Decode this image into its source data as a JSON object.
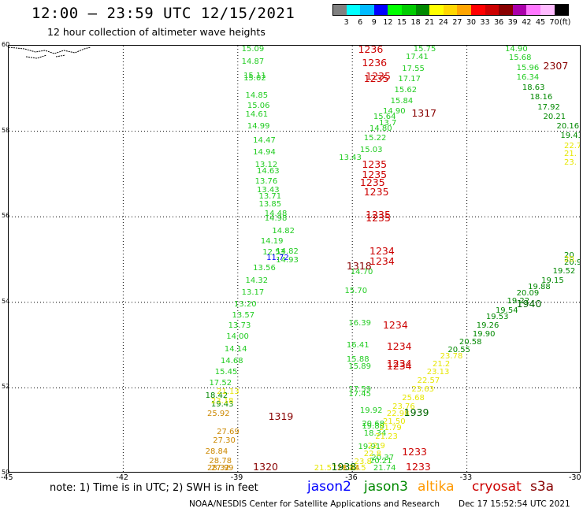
{
  "header": {
    "title": "12:00 – 23:59 UTC 12/15/2021",
    "subtitle": "12 hour collection of altimeter wave heights"
  },
  "colorbar": {
    "colors": [
      "#808080",
      "#00ffff",
      "#00bbff",
      "#0000ff",
      "#00ff00",
      "#00cc00",
      "#008800",
      "#ffff00",
      "#ffd700",
      "#ffa500",
      "#ff0000",
      "#cc0000",
      "#880000",
      "#aa00aa",
      "#ff77ff",
      "#ffbbff",
      "#000000"
    ],
    "ticks": [
      "3",
      "6",
      "9",
      "12",
      "15",
      "18",
      "21",
      "24",
      "27",
      "30",
      "33",
      "36",
      "39",
      "42",
      "45",
      "70"
    ],
    "unit": "(ft)"
  },
  "axes": {
    "lon_ticks": [
      "-45",
      "-42",
      "-39",
      "-36",
      "-33",
      "-30"
    ],
    "lat_ticks": [
      "60",
      "58",
      "56",
      "54",
      "52",
      "50"
    ]
  },
  "times": [
    {
      "t": "1236",
      "lon": -35.85,
      "lat": 59.92,
      "c": "#cc0000"
    },
    {
      "t": "1236",
      "lon": -35.75,
      "lat": 59.57,
      "c": "#cc0000"
    },
    {
      "t": "1235",
      "lon": -35.65,
      "lat": 59.27,
      "c": "#cc0000"
    },
    {
      "t": "1235",
      "lon": -35.7,
      "lat": 59.2,
      "c": "#cc0000"
    },
    {
      "t": "2307",
      "lon": -31.0,
      "lat": 59.5,
      "c": "#880000"
    },
    {
      "t": "1317",
      "lon": -34.45,
      "lat": 58.4,
      "c": "#880000"
    },
    {
      "t": "1235",
      "lon": -35.75,
      "lat": 57.2,
      "c": "#cc0000"
    },
    {
      "t": "1235",
      "lon": -35.75,
      "lat": 56.97,
      "c": "#cc0000"
    },
    {
      "t": "1235",
      "lon": -35.8,
      "lat": 56.78,
      "c": "#cc0000"
    },
    {
      "t": "1235",
      "lon": -35.7,
      "lat": 56.55,
      "c": "#cc0000"
    },
    {
      "t": "1235",
      "lon": -35.65,
      "lat": 56.02,
      "c": "#cc0000"
    },
    {
      "t": "1235",
      "lon": -35.65,
      "lat": 55.95,
      "c": "#cc0000"
    },
    {
      "t": "1234",
      "lon": -35.55,
      "lat": 55.18,
      "c": "#cc0000"
    },
    {
      "t": "1234",
      "lon": -35.55,
      "lat": 54.93,
      "c": "#cc0000"
    },
    {
      "t": "1318",
      "lon": -36.15,
      "lat": 54.82,
      "c": "#880000"
    },
    {
      "t": "1234",
      "lon": -35.2,
      "lat": 53.45,
      "c": "#cc0000"
    },
    {
      "t": "1234",
      "lon": -35.1,
      "lat": 52.95,
      "c": "#cc0000"
    },
    {
      "t": "1234",
      "lon": -35.1,
      "lat": 52.55,
      "c": "#cc0000"
    },
    {
      "t": "1234",
      "lon": -35.1,
      "lat": 52.48,
      "c": "#cc0000"
    },
    {
      "t": "1940",
      "lon": -31.7,
      "lat": 53.95,
      "c": "#006600"
    },
    {
      "t": "1939",
      "lon": -34.65,
      "lat": 51.4,
      "c": "#006600"
    },
    {
      "t": "1319",
      "lon": -38.2,
      "lat": 51.3,
      "c": "#880000"
    },
    {
      "t": "1233",
      "lon": -34.7,
      "lat": 50.47,
      "c": "#cc0000"
    },
    {
      "t": "1320",
      "lon": -38.6,
      "lat": 50.1,
      "c": "#880000"
    },
    {
      "t": "1938",
      "lon": -36.55,
      "lat": 50.0,
      "c": "#006600"
    },
    {
      "t": "1233",
      "lon": -34.6,
      "lat": 49.98,
      "c": "#cc0000"
    }
  ],
  "tracks": [
    {
      "name": "jason3",
      "color": "#22cc22",
      "values": [
        [
          "15.09",
          -38.9,
          59.92
        ],
        [
          "14.87",
          -38.9,
          59.62
        ],
        [
          "15.11",
          -38.85,
          59.28
        ],
        [
          "15.02",
          -38.85,
          59.22
        ],
        [
          "14.85",
          -38.8,
          58.82
        ],
        [
          "15.06",
          -38.75,
          58.58
        ],
        [
          "14.61",
          -38.8,
          58.38
        ],
        [
          "14.99",
          -38.75,
          58.1
        ],
        [
          "14.47",
          -38.6,
          57.78
        ],
        [
          "14.94",
          -38.6,
          57.5
        ],
        [
          "13.12",
          -38.55,
          57.2
        ],
        [
          "14.63",
          -38.5,
          57.05
        ],
        [
          "13.76",
          -38.55,
          56.82
        ],
        [
          "13.43",
          -38.5,
          56.62
        ],
        [
          "13.71",
          -38.45,
          56.47
        ],
        [
          "13.85",
          -38.45,
          56.28
        ],
        [
          "14.48",
          -38.3,
          56.05
        ],
        [
          "14.98",
          -38.3,
          55.95
        ],
        [
          "14.82",
          -38.1,
          55.65
        ],
        [
          "14.19",
          -38.4,
          55.42
        ],
        [
          "12.53",
          -38.35,
          55.15
        ],
        [
          "14.82",
          -38.0,
          55.17
        ],
        [
          "14.93",
          -38.0,
          54.98
        ],
        [
          "13.56",
          -38.6,
          54.78
        ],
        [
          "14.32",
          -38.8,
          54.5
        ],
        [
          "13.17",
          -38.9,
          54.22
        ],
        [
          "13.20",
          -39.1,
          53.95
        ],
        [
          "13.57",
          -39.15,
          53.68
        ],
        [
          "13.73",
          -39.25,
          53.45
        ],
        [
          "14.00",
          -39.3,
          53.18
        ],
        [
          "14.14",
          -39.35,
          52.9
        ],
        [
          "14.68",
          -39.45,
          52.62
        ],
        [
          "15.45",
          -39.6,
          52.35
        ],
        [
          "17.52",
          -39.75,
          52.1
        ],
        [
          "13.43",
          -36.35,
          57.36
        ]
      ]
    },
    {
      "name": "jason3-east",
      "color": "#22cc22",
      "values": [
        [
          "15.75",
          -34.4,
          59.98
        ],
        [
          "17.41",
          -34.6,
          59.72
        ],
        [
          "17.55",
          -34.7,
          59.45
        ],
        [
          "17.17",
          -34.8,
          59.2
        ],
        [
          "15.62",
          -34.9,
          58.95
        ],
        [
          "15.84",
          -35.0,
          58.7
        ],
        [
          "14.90",
          -35.2,
          58.45
        ],
        [
          "13.7",
          -35.3,
          58.18
        ],
        [
          "15.64",
          -35.45,
          58.32
        ],
        [
          "14.80",
          -35.55,
          58.05
        ],
        [
          "15.22",
          -35.7,
          57.82
        ],
        [
          "15.03",
          -35.8,
          57.55
        ],
        [
          "14.70",
          -36.05,
          54.7
        ],
        [
          "15.70",
          -36.2,
          54.25
        ],
        [
          "16.39",
          -36.1,
          53.5
        ],
        [
          "16.41",
          -36.15,
          52.98
        ],
        [
          "15.88",
          -36.15,
          52.65
        ],
        [
          "15.89",
          -36.1,
          52.48
        ],
        [
          "17.59",
          -36.1,
          51.95
        ],
        [
          "17.45",
          -36.1,
          51.85
        ],
        [
          "19.92",
          -35.8,
          51.45
        ],
        [
          "20.68",
          -35.75,
          51.15
        ],
        [
          "19.88",
          -35.75,
          51.08
        ],
        [
          "18.34",
          -35.7,
          50.92
        ],
        [
          "19.91",
          -35.85,
          50.6
        ],
        [
          "20.37",
          -35.5,
          50.35
        ],
        [
          "20.21",
          -35.55,
          50.28
        ],
        [
          "21.74",
          -35.45,
          49.98
        ]
      ]
    },
    {
      "name": "s3a-north",
      "color": "#22cc22",
      "values": [
        [
          "14.90",
          -32.0,
          59.95
        ],
        [
          "15.68",
          -31.9,
          59.7
        ],
        [
          "15.96",
          -31.7,
          59.47
        ],
        [
          "16.34",
          -31.7,
          59.25
        ]
      ]
    },
    {
      "name": "s3a-north-dark",
      "color": "#008800",
      "values": [
        [
          "18.63",
          -31.55,
          59.0
        ],
        [
          "18.16",
          -31.35,
          58.78
        ],
        [
          "17.92",
          -31.15,
          58.55
        ],
        [
          "20.21",
          -31.0,
          58.33
        ],
        [
          "20.16",
          -30.65,
          58.1
        ],
        [
          "19.43",
          -30.55,
          57.88
        ]
      ]
    },
    {
      "name": "s3a-north-yellow",
      "color": "#e6e600",
      "values": [
        [
          "22.7",
          -30.25,
          57.65
        ],
        [
          "21.",
          -30.15,
          57.45
        ],
        [
          "23.",
          -30.1,
          57.25
        ]
      ]
    },
    {
      "name": "jason3-diag",
      "color": "#008800",
      "values": [
        [
          "20",
          -30.1,
          55.08
        ],
        [
          "20.9",
          -30.3,
          54.92
        ],
        [
          "19.52",
          -30.75,
          54.72
        ],
        [
          "19.15",
          -31.05,
          54.5
        ],
        [
          "19.88",
          -31.4,
          54.35
        ],
        [
          "20.09",
          -31.7,
          54.2
        ],
        [
          "19.22",
          -31.95,
          54.02
        ],
        [
          "19.54",
          -32.25,
          53.8
        ],
        [
          "19.53",
          -32.5,
          53.65
        ],
        [
          "19.26",
          -32.75,
          53.45
        ],
        [
          "19.90",
          -32.85,
          53.25
        ],
        [
          "20.58",
          -33.2,
          53.05
        ],
        [
          "20.55",
          -33.5,
          52.88
        ],
        [
          "18.42",
          -39.85,
          51.8
        ],
        [
          "19.43",
          -39.7,
          51.6
        ]
      ]
    },
    {
      "name": "yellow-diag",
      "color": "#e6e600",
      "values": [
        [
          "20.",
          -30.15,
          55.0
        ],
        [
          "23.78",
          -33.7,
          52.72
        ],
        [
          "21.2",
          -33.9,
          52.55
        ],
        [
          "23.13",
          -34.05,
          52.35
        ],
        [
          "22.57",
          -34.3,
          52.15
        ],
        [
          "23.63",
          -34.45,
          51.95
        ],
        [
          "25.68",
          -34.7,
          51.75
        ],
        [
          "23.76",
          -34.95,
          51.55
        ],
        [
          "22.98",
          -35.1,
          51.38
        ],
        [
          "21.50",
          -35.2,
          51.2
        ],
        [
          "21.79",
          -35.3,
          51.05
        ],
        [
          "21.23",
          -35.4,
          50.85
        ],
        [
          "22.9",
          -35.6,
          50.62
        ],
        [
          "22.8",
          -35.7,
          50.45
        ],
        [
          "23.8",
          -35.95,
          50.25
        ],
        [
          "22.5",
          -36.1,
          50.1
        ],
        [
          "21.8",
          -36.4,
          49.95
        ],
        [
          "21.57",
          -37.0,
          49.98
        ],
        [
          "21.13",
          -39.55,
          51.9
        ],
        [
          "23.18",
          -39.7,
          51.68
        ]
      ]
    },
    {
      "name": "altika",
      "color": "#cc8800",
      "values": [
        [
          "25.92",
          -39.8,
          51.38
        ],
        [
          "27.69",
          -39.55,
          50.95
        ],
        [
          "27.30",
          -39.65,
          50.75
        ],
        [
          "28.84",
          -39.85,
          50.5
        ],
        [
          "28.78",
          -39.75,
          50.28
        ],
        [
          "27.99",
          -39.7,
          50.05
        ],
        [
          "28.32",
          -39.8,
          49.88
        ],
        [
          "28.14",
          -36.4,
          50.1
        ]
      ]
    },
    {
      "name": "jason2",
      "color": "#0000ff",
      "values": [
        [
          "11.72",
          -38.25,
          55.03
        ]
      ]
    }
  ],
  "footer": {
    "note": "note:  1) Time is in UTC;  2) SWH is in feet",
    "satellites": [
      {
        "name": "jason2",
        "color": "#0000ff"
      },
      {
        "name": "jason3",
        "color": "#008800"
      },
      {
        "name": "altika",
        "color": "#ff9900"
      },
      {
        "name": "cryosat",
        "color": "#cc0000"
      },
      {
        "name": "s3a",
        "color": "#880000"
      }
    ],
    "credit": "NOAA/NESDIS Center for Satellite Applications and Research",
    "timestamp": "Dec 17 15:52:54 UTC 2021"
  }
}
